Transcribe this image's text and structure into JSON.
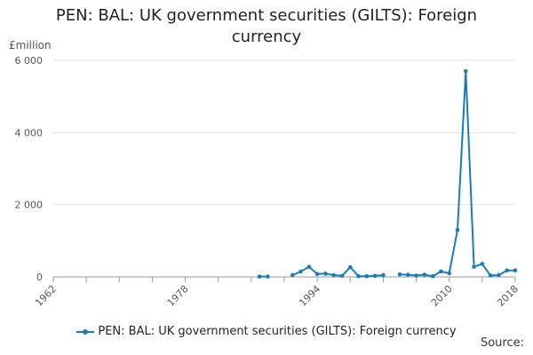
{
  "chart_data": {
    "type": "line",
    "title": "PEN: BAL: UK government securities (GILTS): Foreign currency",
    "unit_label": "£million",
    "source_label": "Source:",
    "color": "#1a7cb8",
    "ylim": [
      0,
      6000
    ],
    "xlim": [
      1962,
      2018
    ],
    "y_ticks": [
      0,
      2000,
      4000,
      6000
    ],
    "y_tick_labels": [
      "0",
      "2 000",
      "4 000",
      "6 000"
    ],
    "x_ticks": [
      1962,
      1978,
      1994,
      2010,
      2018
    ],
    "x_tick_labels": [
      "1962",
      "1978",
      "1994",
      "2010",
      "2018"
    ],
    "grid": "horizontal",
    "legend_position": "bottom",
    "series": [
      {
        "name": "PEN: BAL: UK government securities (GILTS): Foreign currency",
        "segments": [
          [
            [
              1987,
              10
            ],
            [
              1988,
              10
            ]
          ],
          [
            [
              1991,
              50
            ],
            [
              1992,
              150
            ],
            [
              1993,
              280
            ],
            [
              1994,
              80
            ],
            [
              1995,
              90
            ],
            [
              1996,
              50
            ],
            [
              1997,
              30
            ],
            [
              1998,
              270
            ],
            [
              1999,
              20
            ],
            [
              2000,
              20
            ],
            [
              2001,
              30
            ],
            [
              2002,
              50
            ]
          ],
          [
            [
              2004,
              70
            ],
            [
              2005,
              60
            ],
            [
              2006,
              40
            ],
            [
              2007,
              60
            ],
            [
              2008,
              20
            ],
            [
              2009,
              150
            ],
            [
              2010,
              100
            ],
            [
              2011,
              1300
            ],
            [
              2012,
              5700
            ],
            [
              2013,
              280
            ],
            [
              2014,
              360
            ],
            [
              2015,
              40
            ],
            [
              2016,
              50
            ],
            [
              2017,
              180
            ],
            [
              2018,
              180
            ]
          ]
        ]
      }
    ]
  }
}
